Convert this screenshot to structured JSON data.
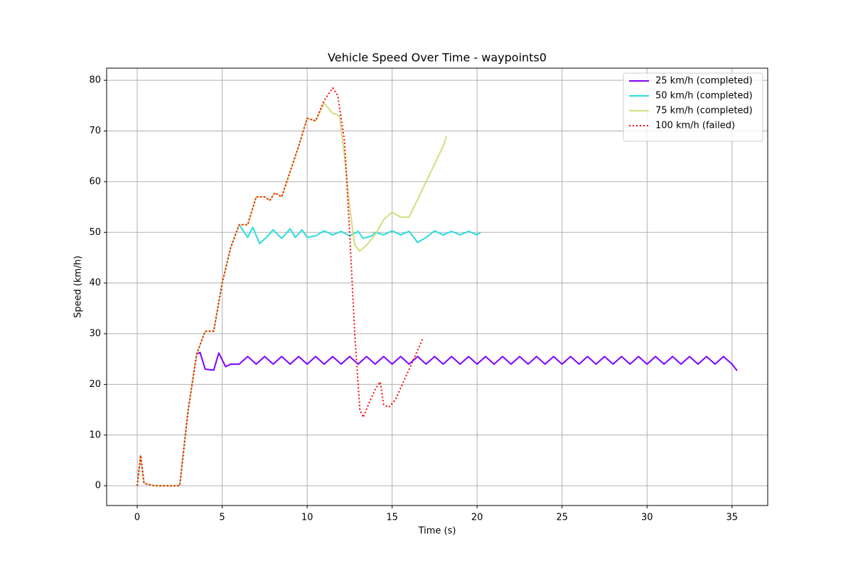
{
  "chart_data": {
    "type": "line",
    "title": "Vehicle Speed Over Time - waypoints0",
    "x_label": "Time (s)",
    "y_label": "Speed (km/h)",
    "xlim": [
      -1.8,
      37.1
    ],
    "ylim": [
      -3.9,
      82.4
    ],
    "xticks": [
      0,
      5,
      10,
      15,
      20,
      25,
      30,
      35
    ],
    "yticks": [
      0,
      10,
      20,
      30,
      40,
      50,
      60,
      70,
      80
    ],
    "grid": true,
    "legend": "upper right",
    "series": [
      {
        "name": "25 km/h (completed)",
        "color": "#8000ff",
        "linestyle": "solid",
        "x": [
          0,
          0.2,
          0.4,
          0.6,
          1,
          2,
          2.5,
          3,
          3.5,
          3.7,
          4,
          4.5,
          4.8,
          5.2,
          5.5,
          6,
          6.5,
          7,
          7.5,
          8,
          8.5,
          9,
          9.5,
          10,
          10.5,
          11,
          11.5,
          12,
          12.5,
          13,
          13.5,
          14,
          14.5,
          15,
          15.5,
          16,
          16.5,
          17,
          17.5,
          18,
          18.5,
          19,
          19.5,
          20,
          20.5,
          21,
          21.5,
          22,
          22.5,
          23,
          23.5,
          24,
          24.5,
          25,
          25.5,
          26,
          26.5,
          27,
          27.5,
          28,
          28.5,
          29,
          29.5,
          30,
          30.5,
          31,
          31.5,
          32,
          32.5,
          33,
          33.5,
          34,
          34.5,
          35,
          35.3
        ],
        "values": [
          0,
          6,
          0.5,
          0.3,
          0,
          0,
          0,
          15,
          26,
          26.3,
          23,
          22.8,
          26.2,
          23.5,
          24,
          24,
          25.5,
          24,
          25.5,
          24,
          25.5,
          24,
          25.5,
          24,
          25.5,
          24,
          25.5,
          24,
          25.5,
          24,
          25.5,
          24,
          25.5,
          24,
          25.5,
          24,
          25.5,
          24,
          25.5,
          24,
          25.5,
          24,
          25.5,
          24,
          25.5,
          24,
          25.5,
          24,
          25.5,
          24,
          25.5,
          24,
          25.5,
          24,
          25.5,
          24,
          25.5,
          24,
          25.5,
          24,
          25.5,
          24,
          25.5,
          24,
          25.5,
          24,
          25.5,
          24,
          25.5,
          24,
          25.5,
          24,
          25.5,
          24,
          22.7
        ]
      },
      {
        "name": "50 km/h (completed)",
        "color": "#2adddd",
        "linestyle": "solid",
        "x": [
          0,
          0.2,
          0.4,
          0.6,
          1,
          2,
          2.5,
          3,
          3.5,
          4,
          4.5,
          5,
          5.5,
          6,
          6.5,
          6.8,
          7.2,
          7.6,
          8,
          8.5,
          9,
          9.3,
          9.7,
          10,
          10.5,
          11,
          11.5,
          12,
          12.5,
          13,
          13.3,
          13.8,
          14,
          14.5,
          15,
          15.5,
          16,
          16.5,
          17,
          17.5,
          18,
          18.5,
          19,
          19.5,
          20,
          20.2
        ],
        "values": [
          0,
          6,
          0.5,
          0.3,
          0,
          0,
          0,
          15,
          26,
          30.5,
          30.5,
          40,
          47,
          51.5,
          49,
          51,
          47.8,
          49,
          50.5,
          48.8,
          50.7,
          49,
          50.5,
          49,
          49.3,
          50.3,
          49.5,
          50.2,
          49.3,
          50.2,
          48.8,
          49.3,
          50,
          49.5,
          50.3,
          49.5,
          50.2,
          48,
          49,
          50.3,
          49.5,
          50.2,
          49.5,
          50.2,
          49.5,
          50
        ]
      },
      {
        "name": "75 km/h (completed)",
        "color": "#d4dd80",
        "linestyle": "solid",
        "x": [
          0,
          0.2,
          0.4,
          0.6,
          1,
          2,
          2.5,
          3,
          3.5,
          4,
          4.5,
          5,
          5.5,
          6,
          6.5,
          7,
          7.5,
          7.8,
          8.1,
          8.5,
          9,
          9.5,
          10,
          10.5,
          11,
          11.5,
          11.9,
          12.2,
          12.5,
          12.8,
          13.1,
          13.5,
          14,
          14.5,
          15,
          15.5,
          16,
          16.5,
          17,
          17.5,
          18,
          18.2
        ],
        "values": [
          0,
          6,
          0.5,
          0.3,
          0,
          0,
          0,
          15,
          26,
          30.5,
          30.5,
          40,
          47,
          51.5,
          51.5,
          57,
          57,
          56.3,
          57.8,
          57,
          62,
          67,
          72.5,
          72,
          75.5,
          73.5,
          73,
          65,
          55,
          47.5,
          46.3,
          47.5,
          49.5,
          52.5,
          54,
          53,
          53,
          56.5,
          60,
          63.5,
          67,
          69
        ]
      },
      {
        "name": "100 km/h (failed)",
        "color": "#ff0000",
        "linestyle": "dotted",
        "x": [
          0,
          0.2,
          0.4,
          0.6,
          1,
          2,
          2.5,
          3,
          3.5,
          4,
          4.5,
          5,
          5.5,
          6,
          6.5,
          7,
          7.5,
          7.8,
          8.1,
          8.5,
          9,
          9.5,
          10,
          10.5,
          11,
          11.5,
          11.8,
          12.2,
          12.5,
          12.8,
          13.1,
          13.3,
          13.6,
          14,
          14.3,
          14.5,
          14.8,
          15.2,
          15.6,
          16,
          16.4,
          16.8
        ],
        "values": [
          0,
          6,
          0.5,
          0.3,
          0,
          0,
          0,
          15,
          26,
          30.5,
          30.5,
          40,
          47,
          51.5,
          51.5,
          57,
          57,
          56.3,
          57.8,
          57,
          62,
          67,
          72.5,
          72,
          76,
          78.5,
          77,
          68,
          50,
          30,
          15,
          13.5,
          16,
          19,
          20.5,
          16,
          15.5,
          17,
          20,
          23,
          26,
          29
        ]
      }
    ]
  }
}
